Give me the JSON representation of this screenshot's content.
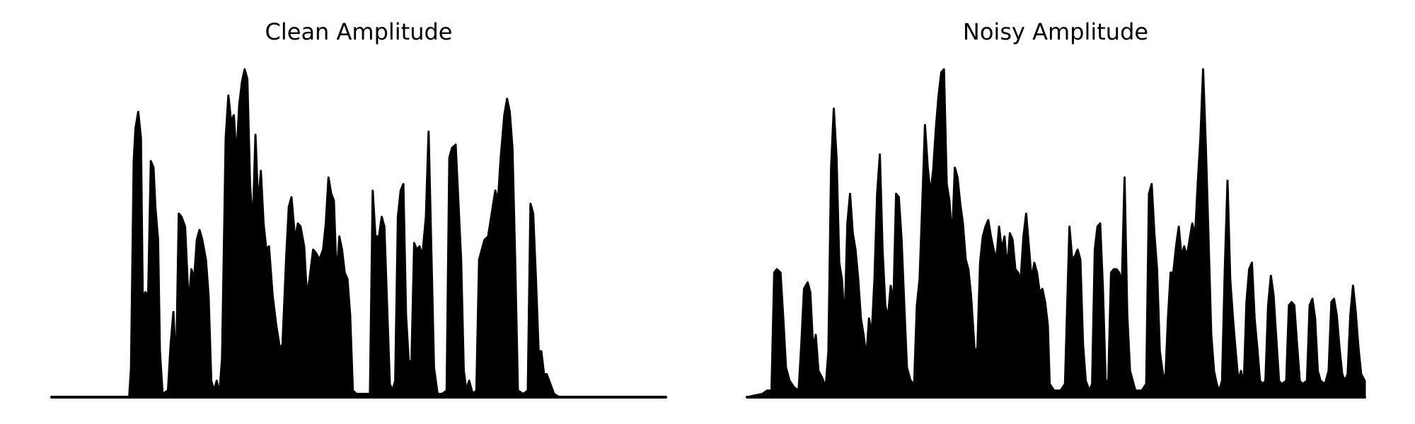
{
  "chart_data": [
    {
      "type": "area",
      "title": "Clean Amplitude",
      "color": "#000000",
      "xlim": [
        0,
        681
      ],
      "ylim": [
        0,
        1
      ],
      "x": [
        0,
        86,
        88,
        91,
        93,
        96,
        99,
        101,
        104,
        107,
        110,
        113,
        115,
        118,
        120,
        123,
        129,
        132,
        135,
        138,
        141,
        144,
        148,
        152,
        155,
        158,
        161,
        164,
        167,
        171,
        174,
        177,
        180,
        183,
        186,
        189,
        193,
        196,
        199,
        202,
        205,
        208,
        211,
        214,
        217,
        220,
        223,
        226,
        229,
        232,
        235,
        238,
        241,
        245,
        249,
        253,
        256,
        260,
        263,
        266,
        270,
        273,
        276,
        280,
        283,
        286,
        290,
        293,
        297,
        301,
        304,
        307,
        310,
        313,
        316,
        319,
        322,
        325,
        328,
        331,
        334,
        338,
        353,
        356,
        359,
        363,
        366,
        369,
        372,
        375,
        378,
        381,
        384,
        387,
        390,
        393,
        396,
        399,
        402,
        405,
        408,
        411,
        415,
        418,
        421,
        424,
        428,
        433,
        438,
        441,
        444,
        448,
        451,
        454,
        457,
        460,
        463,
        467,
        471,
        474,
        477,
        480,
        484,
        488,
        492,
        495,
        498,
        502,
        505,
        508,
        511,
        514,
        517,
        523,
        528,
        531,
        534,
        537,
        540,
        543,
        546,
        549,
        553,
        557,
        563,
        681
      ],
      "values": [
        0,
        0,
        0.09,
        0.72,
        0.82,
        0.87,
        0.79,
        0.31,
        0.32,
        0.31,
        0.72,
        0.7,
        0.58,
        0.48,
        0.14,
        0.01,
        0.02,
        0.16,
        0.26,
        0.08,
        0.56,
        0.55,
        0.52,
        0.28,
        0.39,
        0.36,
        0.48,
        0.51,
        0.48,
        0.42,
        0.31,
        0.05,
        0.02,
        0.05,
        0.01,
        0.12,
        0.79,
        0.92,
        0.84,
        0.86,
        0.73,
        0.89,
        0.96,
        1.0,
        0.97,
        0.65,
        0.52,
        0.8,
        0.58,
        0.69,
        0.53,
        0.45,
        0.46,
        0.31,
        0.22,
        0.15,
        0.16,
        0.42,
        0.58,
        0.61,
        0.48,
        0.53,
        0.52,
        0.46,
        0.31,
        0.36,
        0.45,
        0.44,
        0.42,
        0.45,
        0.53,
        0.67,
        0.62,
        0.6,
        0.36,
        0.49,
        0.45,
        0.38,
        0.36,
        0.25,
        0.02,
        0.01,
        0.01,
        0.63,
        0.49,
        0.49,
        0.55,
        0.52,
        0.28,
        0.04,
        0.02,
        0.05,
        0.55,
        0.63,
        0.65,
        0.25,
        0.11,
        0.11,
        0.47,
        0.45,
        0.46,
        0.43,
        0.55,
        0.81,
        0.45,
        0.09,
        0.01,
        0.01,
        0.02,
        0.73,
        0.76,
        0.77,
        0.6,
        0.42,
        0.08,
        0.02,
        0.05,
        0.01,
        0.02,
        0.42,
        0.45,
        0.48,
        0.49,
        0.56,
        0.63,
        0.6,
        0.73,
        0.86,
        0.91,
        0.87,
        0.76,
        0.42,
        0.02,
        0.01,
        0.02,
        0.59,
        0.56,
        0.36,
        0.14,
        0.14,
        0.07,
        0.07,
        0.04,
        0.01,
        0,
        0
      ]
    },
    {
      "type": "area",
      "title": "Noisy Amplitude",
      "color": "#000000",
      "xlim": [
        0,
        684
      ],
      "ylim": [
        0,
        1
      ],
      "x": [
        0,
        17,
        22,
        27,
        30,
        33,
        37,
        40,
        43,
        47,
        52,
        57,
        60,
        63,
        67,
        70,
        73,
        76,
        79,
        83,
        87,
        90,
        93,
        96,
        99,
        102,
        105,
        108,
        111,
        114,
        117,
        120,
        123,
        126,
        129,
        132,
        135,
        138,
        141,
        144,
        147,
        150,
        153,
        156,
        159,
        162,
        165,
        168,
        171,
        174,
        177,
        181,
        185,
        188,
        191,
        194,
        197,
        200,
        203,
        206,
        209,
        212,
        215,
        218,
        221,
        224,
        227,
        230,
        233,
        236,
        239,
        242,
        245,
        248,
        252,
        255,
        258,
        261,
        264,
        267,
        270,
        273,
        276,
        279,
        282,
        285,
        288,
        291,
        294,
        297,
        300,
        303,
        306,
        309,
        312,
        315,
        318,
        321,
        324,
        327,
        330,
        333,
        335,
        340,
        347,
        352,
        357,
        360,
        363,
        366,
        369,
        372,
        375,
        379,
        382,
        385,
        388,
        391,
        394,
        397,
        400,
        403,
        406,
        409,
        412,
        415,
        418,
        421,
        424,
        430,
        437,
        442,
        445,
        448,
        451,
        454,
        457,
        460,
        463,
        466,
        469,
        472,
        475,
        478,
        481,
        484,
        487,
        490,
        493,
        496,
        499,
        502,
        505,
        508,
        511,
        514,
        517,
        520,
        523,
        526,
        529,
        532,
        535,
        538,
        541,
        544,
        547,
        550,
        553,
        556,
        559,
        562,
        565,
        568,
        571,
        574,
        577,
        580,
        583,
        586,
        589,
        592,
        597,
        600,
        603,
        606,
        609,
        612,
        615,
        620,
        623,
        626,
        629,
        632,
        635,
        640,
        644,
        647,
        650,
        653,
        656,
        659,
        662,
        665,
        668,
        671,
        674,
        677,
        680,
        684
      ],
      "values": [
        0,
        0.01,
        0.02,
        0.02,
        0.38,
        0.39,
        0.38,
        0.24,
        0.09,
        0.05,
        0.03,
        0.02,
        0.16,
        0.33,
        0.35,
        0.32,
        0.15,
        0.19,
        0.08,
        0.06,
        0.03,
        0.14,
        0.7,
        0.88,
        0.73,
        0.41,
        0.36,
        0.22,
        0.53,
        0.62,
        0.5,
        0.45,
        0.36,
        0.24,
        0.19,
        0.12,
        0.24,
        0.19,
        0.36,
        0.62,
        0.74,
        0.45,
        0.28,
        0.24,
        0.34,
        0.29,
        0.62,
        0.61,
        0.48,
        0.28,
        0.09,
        0.05,
        0.04,
        0.28,
        0.36,
        0.59,
        0.83,
        0.7,
        0.62,
        0.69,
        0.82,
        0.92,
        0.99,
        1.0,
        0.65,
        0.6,
        0.48,
        0.7,
        0.67,
        0.59,
        0.53,
        0.42,
        0.39,
        0.31,
        0.14,
        0.15,
        0.41,
        0.49,
        0.52,
        0.54,
        0.49,
        0.45,
        0.42,
        0.52,
        0.45,
        0.49,
        0.39,
        0.5,
        0.48,
        0.39,
        0.38,
        0.36,
        0.49,
        0.56,
        0.46,
        0.36,
        0.41,
        0.38,
        0.32,
        0.33,
        0.29,
        0.22,
        0.04,
        0.02,
        0.02,
        0.04,
        0.52,
        0.42,
        0.43,
        0.45,
        0.42,
        0.16,
        0.05,
        0.02,
        0.04,
        0.45,
        0.52,
        0.53,
        0.33,
        0.05,
        0.05,
        0.38,
        0.39,
        0.39,
        0.38,
        0.35,
        0.67,
        0.25,
        0.08,
        0.02,
        0.02,
        0.04,
        0.62,
        0.65,
        0.5,
        0.39,
        0.14,
        0.08,
        0.04,
        0.24,
        0.38,
        0.38,
        0.46,
        0.52,
        0.43,
        0.46,
        0.43,
        0.48,
        0.53,
        0.49,
        0.65,
        0.79,
        1.0,
        0.76,
        0.48,
        0.19,
        0.08,
        0.04,
        0.02,
        0.05,
        0.39,
        0.66,
        0.36,
        0.24,
        0.14,
        0.05,
        0.08,
        0.04,
        0.29,
        0.39,
        0.41,
        0.24,
        0.15,
        0.05,
        0.04,
        0.05,
        0.28,
        0.37,
        0.31,
        0.18,
        0.05,
        0.04,
        0.05,
        0.28,
        0.29,
        0.28,
        0.16,
        0.05,
        0.04,
        0.05,
        0.28,
        0.3,
        0.24,
        0.08,
        0.05,
        0.04,
        0.08,
        0.29,
        0.3,
        0.25,
        0.15,
        0.07,
        0.05,
        0.07,
        0.25,
        0.34,
        0.26,
        0.15,
        0.07,
        0.05
      ]
    }
  ]
}
